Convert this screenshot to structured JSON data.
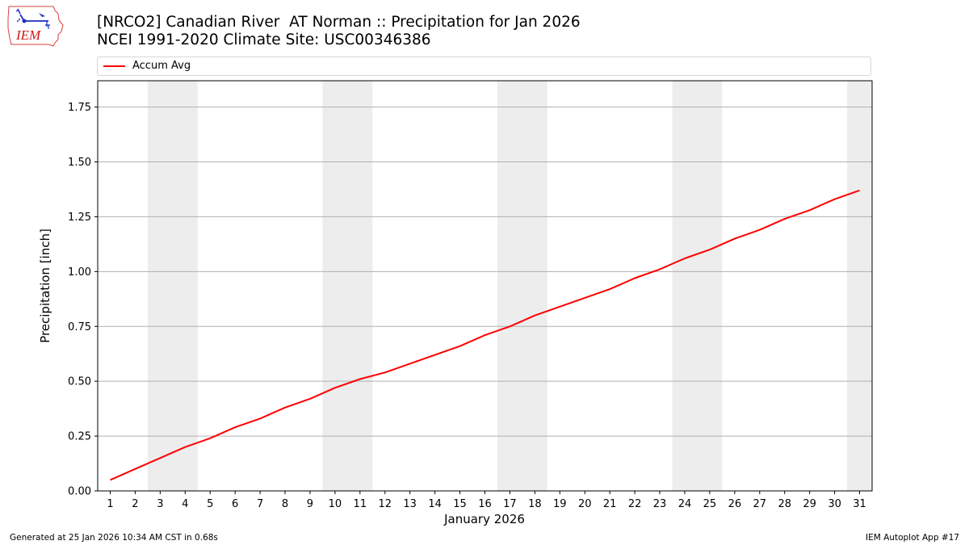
{
  "header": {
    "logo_text": "IEM",
    "title_line1": "[NRCO2] Canadian River  AT Norman :: Precipitation for Jan 2026",
    "title_line2": "NCEI 1991-2020 Climate Site: USC00346386"
  },
  "legend": {
    "items": [
      {
        "label": "Accum Avg",
        "color": "#ff0000"
      }
    ]
  },
  "axes": {
    "ylabel": "Precipitation [inch]",
    "xlabel": "January 2026"
  },
  "footer": {
    "left": "Generated at 25 Jan 2026 10:34 AM CST in 0.68s",
    "right": "IEM Autoplot App #17"
  },
  "colors": {
    "line": "#ff0000",
    "weekend_shade": "#ededed",
    "grid": "#b0b0b0"
  },
  "chart_data": {
    "type": "line",
    "title": "[NRCO2] Canadian River  AT Norman :: Precipitation for Jan 2026",
    "subtitle": "NCEI 1991-2020 Climate Site: USC00346386",
    "xlabel": "January 2026",
    "ylabel": "Precipitation [inch]",
    "xlim": [
      0.5,
      31.5
    ],
    "ylim": [
      0,
      1.87
    ],
    "yticks": [
      0.0,
      0.25,
      0.5,
      0.75,
      1.0,
      1.25,
      1.5,
      1.75
    ],
    "ytick_labels": [
      "0.00",
      "0.25",
      "0.50",
      "0.75",
      "1.00",
      "1.25",
      "1.50",
      "1.75"
    ],
    "xticks": [
      1,
      2,
      3,
      4,
      5,
      6,
      7,
      8,
      9,
      10,
      11,
      12,
      13,
      14,
      15,
      16,
      17,
      18,
      19,
      20,
      21,
      22,
      23,
      24,
      25,
      26,
      27,
      28,
      29,
      30,
      31
    ],
    "grid": "y-major",
    "legend_position": "top (above plot)",
    "shaded_spans": [
      [
        2.5,
        4.5
      ],
      [
        9.5,
        11.5
      ],
      [
        16.5,
        18.5
      ],
      [
        23.5,
        25.5
      ],
      [
        30.5,
        31.5
      ]
    ],
    "x": [
      1,
      2,
      3,
      4,
      5,
      6,
      7,
      8,
      9,
      10,
      11,
      12,
      13,
      14,
      15,
      16,
      17,
      18,
      19,
      20,
      21,
      22,
      23,
      24,
      25,
      26,
      27,
      28,
      29,
      30,
      31
    ],
    "series": [
      {
        "name": "Accum Avg",
        "color": "#ff0000",
        "values": [
          0.05,
          0.1,
          0.15,
          0.2,
          0.24,
          0.29,
          0.33,
          0.38,
          0.42,
          0.47,
          0.51,
          0.54,
          0.58,
          0.62,
          0.66,
          0.71,
          0.75,
          0.8,
          0.84,
          0.88,
          0.92,
          0.97,
          1.01,
          1.06,
          1.1,
          1.15,
          1.19,
          1.24,
          1.28,
          1.33,
          1.37
        ]
      }
    ]
  }
}
